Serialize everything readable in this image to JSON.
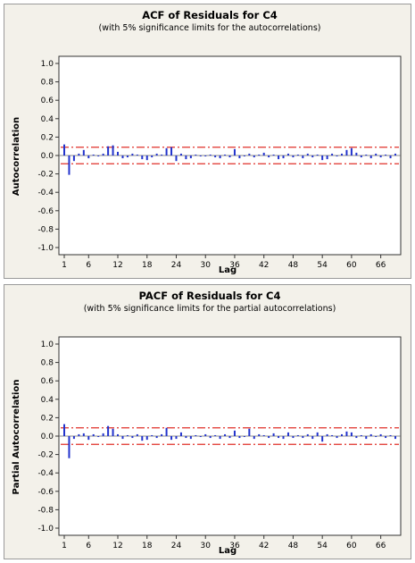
{
  "colors": {
    "bars": "#2233cc",
    "limits": "#e0302a",
    "panel_bg": "#f3f1ea",
    "plot_bg": "#ffffff"
  },
  "chart_data": [
    {
      "type": "bar",
      "title": "ACF of Residuals for C4",
      "subtitle": "(with 5% significance limits for the autocorrelations)",
      "xlabel": "Lag",
      "ylabel": "Autocorrelation",
      "ylim": [
        -1.0,
        1.0
      ],
      "yticks": [
        "1.0",
        "0.8",
        "0.6",
        "0.4",
        "0.2",
        "0.0",
        "-0.2",
        "-0.4",
        "-0.6",
        "-0.8",
        "-1.0"
      ],
      "xticks": [
        "1",
        "6",
        "12",
        "18",
        "24",
        "30",
        "36",
        "42",
        "48",
        "54",
        "60",
        "66"
      ],
      "significance_limits": [
        0.09,
        -0.09
      ],
      "lags": [
        1,
        2,
        3,
        4,
        5,
        6,
        7,
        8,
        9,
        10,
        11,
        12,
        13,
        14,
        15,
        16,
        17,
        18,
        19,
        20,
        21,
        22,
        23,
        24,
        25,
        26,
        27,
        28,
        29,
        30,
        31,
        32,
        33,
        34,
        35,
        36,
        37,
        38,
        39,
        40,
        41,
        42,
        43,
        44,
        45,
        46,
        47,
        48,
        49,
        50,
        51,
        52,
        53,
        54,
        55,
        56,
        57,
        58,
        59,
        60,
        61,
        62,
        63,
        64,
        65,
        66,
        67,
        68,
        69
      ],
      "values": [
        0.12,
        -0.21,
        -0.06,
        0.02,
        0.06,
        -0.03,
        0.01,
        -0.01,
        0.02,
        0.1,
        0.11,
        0.04,
        -0.03,
        -0.02,
        0.02,
        0.01,
        -0.04,
        -0.05,
        -0.02,
        0.02,
        0.01,
        0.08,
        0.09,
        -0.06,
        0.02,
        -0.04,
        -0.03,
        0.01,
        -0.01,
        -0.01,
        0.01,
        -0.02,
        -0.03,
        0.01,
        -0.02,
        0.07,
        -0.03,
        -0.01,
        0.02,
        -0.02,
        0.01,
        0.03,
        -0.02,
        0.01,
        -0.04,
        -0.03,
        0.02,
        -0.02,
        0.01,
        -0.03,
        0.02,
        -0.02,
        0.01,
        -0.05,
        -0.04,
        0.02,
        -0.01,
        0.02,
        0.06,
        0.08,
        0.03,
        -0.02,
        0.01,
        -0.03,
        0.02,
        -0.02,
        0.01,
        -0.03,
        0.02
      ]
    },
    {
      "type": "bar",
      "title": "PACF of Residuals for C4",
      "subtitle": "(with 5% significance limits for the partial autocorrelations)",
      "xlabel": "Lag",
      "ylabel": "Partial Autocorrelation",
      "ylim": [
        -1.0,
        1.0
      ],
      "yticks": [
        "1.0",
        "0.8",
        "0.6",
        "0.4",
        "0.2",
        "0.0",
        "-0.2",
        "-0.4",
        "-0.6",
        "-0.8",
        "-1.0"
      ],
      "xticks": [
        "1",
        "6",
        "12",
        "18",
        "24",
        "30",
        "36",
        "42",
        "48",
        "54",
        "60",
        "66"
      ],
      "significance_limits": [
        0.09,
        -0.09
      ],
      "lags": [
        1,
        2,
        3,
        4,
        5,
        6,
        7,
        8,
        9,
        10,
        11,
        12,
        13,
        14,
        15,
        16,
        17,
        18,
        19,
        20,
        21,
        22,
        23,
        24,
        25,
        26,
        27,
        28,
        29,
        30,
        31,
        32,
        33,
        34,
        35,
        36,
        37,
        38,
        39,
        40,
        41,
        42,
        43,
        44,
        45,
        46,
        47,
        48,
        49,
        50,
        51,
        52,
        53,
        54,
        55,
        56,
        57,
        58,
        59,
        60,
        61,
        62,
        63,
        64,
        65,
        66,
        67,
        68,
        69
      ],
      "values": [
        0.13,
        -0.24,
        -0.03,
        0.02,
        0.03,
        -0.04,
        0.02,
        -0.01,
        0.03,
        0.11,
        0.08,
        0.02,
        -0.03,
        0.01,
        -0.02,
        0.02,
        -0.05,
        -0.04,
        0.01,
        -0.02,
        0.02,
        0.09,
        -0.04,
        -0.03,
        0.04,
        -0.02,
        -0.03,
        0.01,
        -0.01,
        0.02,
        -0.02,
        0.01,
        -0.03,
        0.02,
        -0.02,
        0.06,
        -0.02,
        -0.01,
        0.08,
        -0.03,
        0.02,
        0.01,
        -0.02,
        0.03,
        -0.02,
        -0.03,
        0.04,
        -0.02,
        0.01,
        -0.02,
        0.02,
        -0.03,
        0.04,
        -0.06,
        0.02,
        0.01,
        -0.02,
        0.02,
        0.05,
        0.04,
        -0.02,
        0.01,
        -0.03,
        0.02,
        -0.01,
        0.02,
        -0.02,
        0.01,
        -0.03
      ]
    }
  ]
}
